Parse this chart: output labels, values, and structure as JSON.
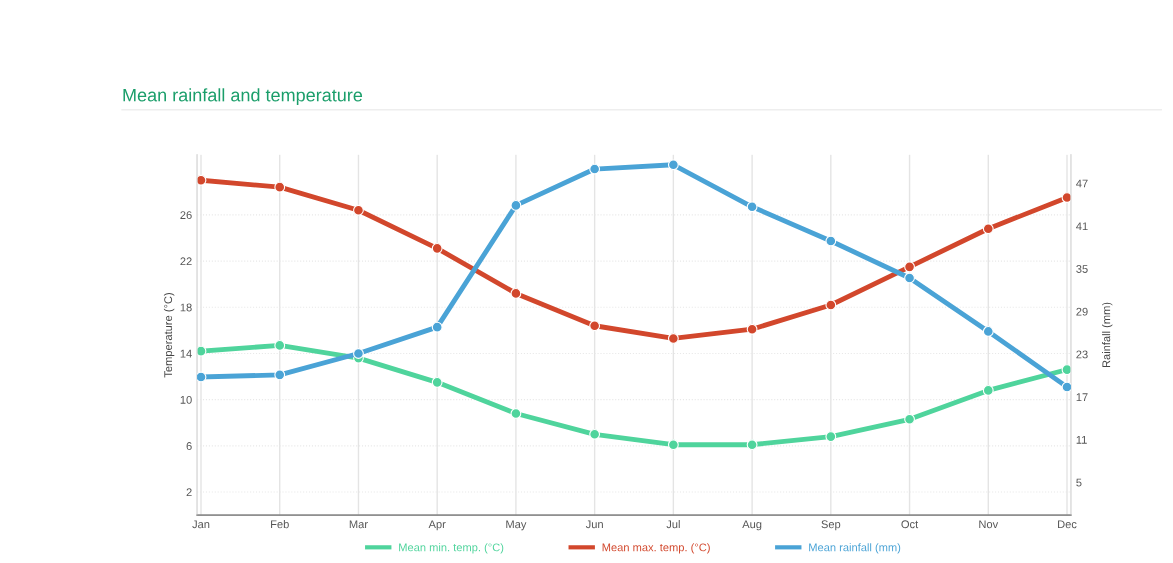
{
  "chart_data": {
    "type": "line",
    "title": "Mean rainfall and temperature",
    "ylabel": "Temperature (°C)",
    "y2label": "Rainfall (mm)",
    "categories": [
      "Jan",
      "Feb",
      "Mar",
      "Apr",
      "May",
      "Jun",
      "Jul",
      "Aug",
      "Sep",
      "Oct",
      "Nov",
      "Dec"
    ],
    "series": [
      {
        "name": "Mean min. temp. (°C)",
        "color": "#4fd49c",
        "values": [
          14.2,
          14.7,
          13.6,
          11.5,
          8.8,
          7.0,
          6.1,
          6.1,
          6.8,
          8.3,
          10.8,
          12.6
        ]
      },
      {
        "name": "Mean max. temp. (°C)",
        "color": "#d2472c",
        "values": [
          29.0,
          28.4,
          26.4,
          23.1,
          19.2,
          16.4,
          15.3,
          16.1,
          18.2,
          21.5,
          24.8,
          27.5
        ]
      },
      {
        "name": "Mean rainfall (mm)",
        "color": "#4aa3d6",
        "axis": "y2",
        "values": [
          19.8,
          20.1,
          23.1,
          26.8,
          43.9,
          49.0,
          49.6,
          43.7,
          38.9,
          33.7,
          26.2,
          18.4
        ]
      }
    ],
    "ylim": [
      0,
      31.2
    ],
    "yticks": [
      2,
      6,
      10,
      14,
      18,
      22,
      26
    ],
    "y2lim": [
      0.4,
      51
    ],
    "y2ticks": [
      5,
      11,
      17,
      23,
      29,
      35,
      41,
      47
    ],
    "grid": true,
    "legend": "bottom",
    "marker": "circle",
    "line_style": "solid"
  }
}
